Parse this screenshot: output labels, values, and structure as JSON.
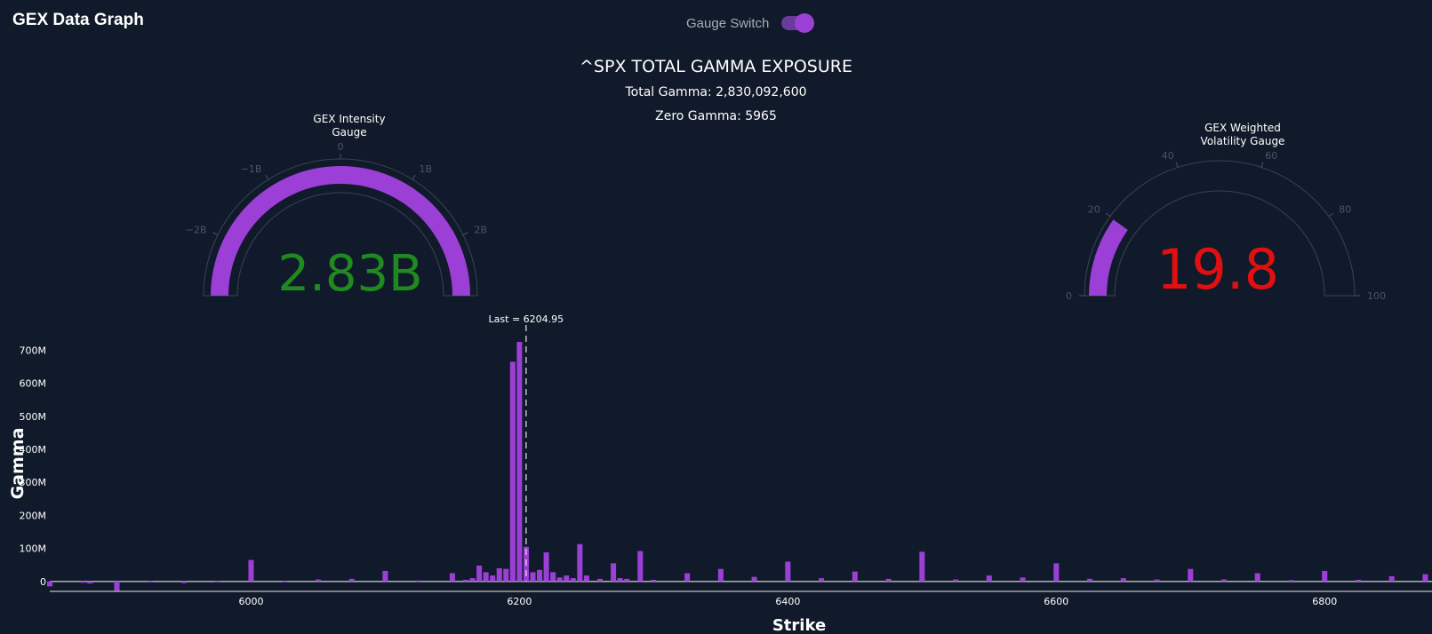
{
  "app": {
    "title": "GEX Data Graph"
  },
  "toggle": {
    "label": "Gauge Switch",
    "on": true
  },
  "header": {
    "title": "^SPX TOTAL GAMMA EXPOSURE",
    "total_gamma": "Total Gamma: 2,830,092,600",
    "zero_gamma": "Zero Gamma: 5965"
  },
  "colors": {
    "accent": "#9b3fd6",
    "background": "#111a2a",
    "intensity_value": "#1f8a1f",
    "volatility_value": "#e01010"
  },
  "gauges": {
    "intensity": {
      "title_line1": "GEX Intensity",
      "title_line2": "Gauge",
      "display": "2.83B",
      "value": 2.83,
      "range": [
        -2.83,
        2.83
      ],
      "tick_values": [
        -2,
        -1,
        0,
        1,
        2
      ],
      "tick_labels": [
        "−2B",
        "−1B",
        "0",
        "1B",
        "2B"
      ]
    },
    "volatility": {
      "title_line1": "GEX Weighted",
      "title_line2": "Volatility Gauge",
      "display": "19.8",
      "value": 19.8,
      "range": [
        0,
        100
      ],
      "tick_values": [
        0,
        20,
        40,
        60,
        80,
        100
      ],
      "tick_labels": [
        "0",
        "20",
        "40",
        "60",
        "80",
        "100"
      ]
    }
  },
  "chart_data": {
    "type": "bar",
    "xlabel": "Strike",
    "ylabel": "Gamma",
    "xlim": [
      5850,
      6880
    ],
    "ylim": [
      -30,
      760
    ],
    "x_ticks": [
      6000,
      6200,
      6400,
      6600,
      6800
    ],
    "y_ticks": [
      0,
      100,
      200,
      300,
      400,
      500,
      600,
      700
    ],
    "y_tick_labels": [
      "0",
      "100M",
      "200M",
      "300M",
      "400M",
      "500M",
      "600M",
      "700M"
    ],
    "annotation": {
      "text": "Last = 6204.95",
      "x": 6204.95
    },
    "grid": false,
    "series": [
      {
        "x": [
          5850,
          5875,
          5880,
          5900,
          5925,
          5950,
          5975,
          6000,
          6025,
          6050,
          6075,
          6100,
          6125,
          6150,
          6160,
          6165,
          6170,
          6175,
          6180,
          6185,
          6190,
          6195,
          6200,
          6205,
          6210,
          6215,
          6220,
          6225,
          6230,
          6235,
          6240,
          6245,
          6250,
          6260,
          6270,
          6275,
          6280,
          6290,
          6300,
          6325,
          6350,
          6375,
          6400,
          6425,
          6450,
          6475,
          6500,
          6525,
          6550,
          6575,
          6600,
          6625,
          6650,
          6675,
          6700,
          6725,
          6750,
          6775,
          6800,
          6825,
          6850,
          6875
        ],
        "values": [
          -15,
          -4,
          -6,
          -28,
          -3,
          -5,
          -2,
          65,
          -2,
          6,
          8,
          32,
          3,
          25,
          5,
          10,
          48,
          28,
          18,
          40,
          38,
          665,
          725,
          105,
          28,
          35,
          88,
          28,
          12,
          18,
          10,
          113,
          18,
          8,
          55,
          10,
          8,
          92,
          5,
          25,
          38,
          14,
          60,
          10,
          30,
          8,
          90,
          6,
          18,
          12,
          55,
          8,
          10,
          6,
          38,
          6,
          25,
          4,
          32,
          5,
          16,
          22
        ]
      }
    ]
  }
}
